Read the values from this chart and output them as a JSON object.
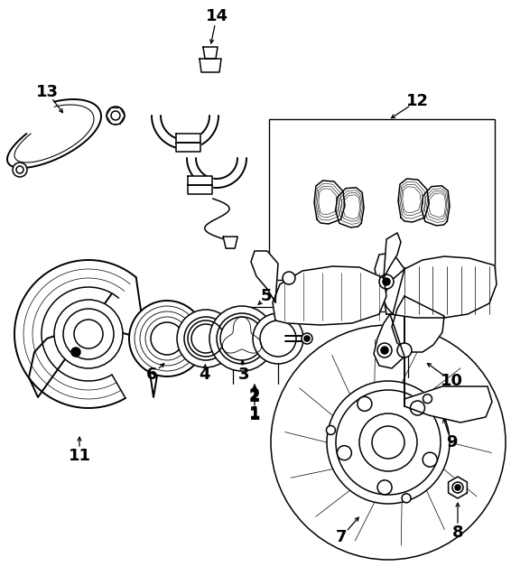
{
  "bg_color": "#ffffff",
  "lc": "#000000",
  "fig_width": 5.66,
  "fig_height": 6.48,
  "dpi": 100,
  "lw": 1.1,
  "lw_thick": 1.4,
  "label_fs": 13
}
